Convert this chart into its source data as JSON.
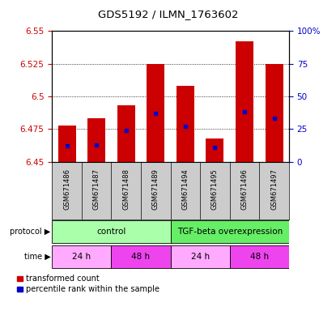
{
  "title": "GDS5192 / ILMN_1763602",
  "samples": [
    "GSM671486",
    "GSM671487",
    "GSM671488",
    "GSM671489",
    "GSM671494",
    "GSM671495",
    "GSM671496",
    "GSM671497"
  ],
  "bar_bottoms": [
    6.45,
    6.45,
    6.45,
    6.45,
    6.45,
    6.45,
    6.45,
    6.45
  ],
  "bar_tops": [
    6.478,
    6.483,
    6.493,
    6.525,
    6.508,
    6.468,
    6.542,
    6.525
  ],
  "blue_positions": [
    6.462,
    6.463,
    6.474,
    6.487,
    6.477,
    6.461,
    6.488,
    6.483
  ],
  "ylim": [
    6.45,
    6.55
  ],
  "yticks_left": [
    6.45,
    6.475,
    6.5,
    6.525,
    6.55
  ],
  "yticks_right": [
    0,
    25,
    50,
    75,
    100
  ],
  "bar_color": "#cc0000",
  "blue_color": "#0000cc",
  "bar_width": 0.6,
  "protocol_labels": [
    "control",
    "TGF-beta overexpression"
  ],
  "protocol_color_control": "#aaffaa",
  "protocol_color_tgf": "#66ee66",
  "time_labels": [
    "24 h",
    "48 h",
    "24 h",
    "48 h"
  ],
  "time_color_24": "#ffaaff",
  "time_color_48": "#ee44ee",
  "legend_red_label": "transformed count",
  "legend_blue_label": "percentile rank within the sample",
  "grid_color": "#000000",
  "background_color": "#ffffff",
  "tick_label_color_left": "#cc0000",
  "tick_label_color_right": "#0000cc",
  "xlabel_bg": "#cccccc"
}
